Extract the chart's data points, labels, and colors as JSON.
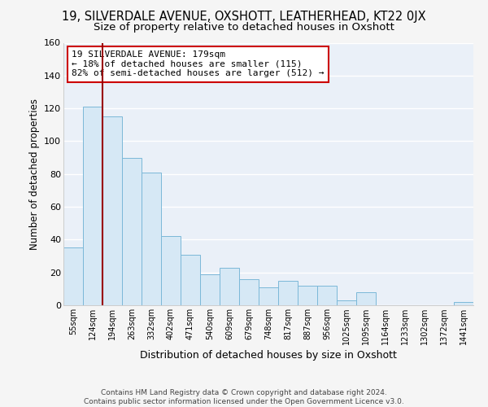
{
  "title": "19, SILVERDALE AVENUE, OXSHOTT, LEATHERHEAD, KT22 0JX",
  "subtitle": "Size of property relative to detached houses in Oxshott",
  "xlabel": "Distribution of detached houses by size in Oxshott",
  "ylabel": "Number of detached properties",
  "footer_line1": "Contains HM Land Registry data © Crown copyright and database right 2024.",
  "footer_line2": "Contains public sector information licensed under the Open Government Licence v3.0.",
  "bin_labels": [
    "55sqm",
    "124sqm",
    "194sqm",
    "263sqm",
    "332sqm",
    "402sqm",
    "471sqm",
    "540sqm",
    "609sqm",
    "679sqm",
    "748sqm",
    "817sqm",
    "887sqm",
    "956sqm",
    "1025sqm",
    "1095sqm",
    "1164sqm",
    "1233sqm",
    "1302sqm",
    "1372sqm",
    "1441sqm"
  ],
  "bar_heights": [
    35,
    121,
    115,
    90,
    81,
    42,
    31,
    19,
    23,
    16,
    11,
    15,
    12,
    12,
    3,
    8,
    0,
    0,
    0,
    0,
    2
  ],
  "bar_color": "#d6e8f5",
  "bar_edge_color": "#7bb8d8",
  "vline_x_index": 2,
  "vline_color": "#990000",
  "ylim": [
    0,
    160
  ],
  "yticks": [
    0,
    20,
    40,
    60,
    80,
    100,
    120,
    140,
    160
  ],
  "annotation_line1": "19 SILVERDALE AVENUE: 179sqm",
  "annotation_line2": "← 18% of detached houses are smaller (115)",
  "annotation_line3": "82% of semi-detached houses are larger (512) →",
  "annotation_box_facecolor": "#ffffff",
  "annotation_box_edgecolor": "#cc0000",
  "title_fontsize": 10.5,
  "subtitle_fontsize": 9.5,
  "axes_bg_color": "#eaf0f8",
  "fig_bg_color": "#f5f5f5",
  "grid_color": "#ffffff",
  "footer_color": "#444444"
}
